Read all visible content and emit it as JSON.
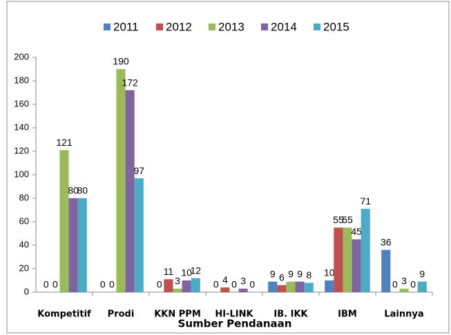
{
  "chart_data": {
    "type": "bar",
    "x_label": "Sumber Pendanaan",
    "categories": [
      "Kompetitif",
      "Prodi",
      "KKN PPM",
      "HI-LINK",
      "IB. IKK",
      "IBM",
      "Lainnya"
    ],
    "series": [
      {
        "name": "2011",
        "color": "#4f81bd",
        "values": [
          0,
          0,
          0,
          0,
          9,
          10,
          36
        ]
      },
      {
        "name": "2012",
        "color": "#c0504d",
        "values": [
          0,
          0,
          11,
          4,
          6,
          55,
          0
        ]
      },
      {
        "name": "2013",
        "color": "#9bbb59",
        "values": [
          121,
          190,
          3,
          0,
          9,
          55,
          3
        ]
      },
      {
        "name": "2014",
        "color": "#8064a2",
        "values": [
          80,
          172,
          10,
          3,
          9,
          45,
          0
        ]
      },
      {
        "name": "2015",
        "color": "#4bacc6",
        "values": [
          80,
          97,
          12,
          0,
          8,
          71,
          9
        ]
      }
    ],
    "ylim": [
      0,
      200
    ],
    "yticks": [
      0,
      20,
      40,
      60,
      80,
      100,
      120,
      140,
      160,
      180,
      200
    ],
    "legend": "top"
  }
}
